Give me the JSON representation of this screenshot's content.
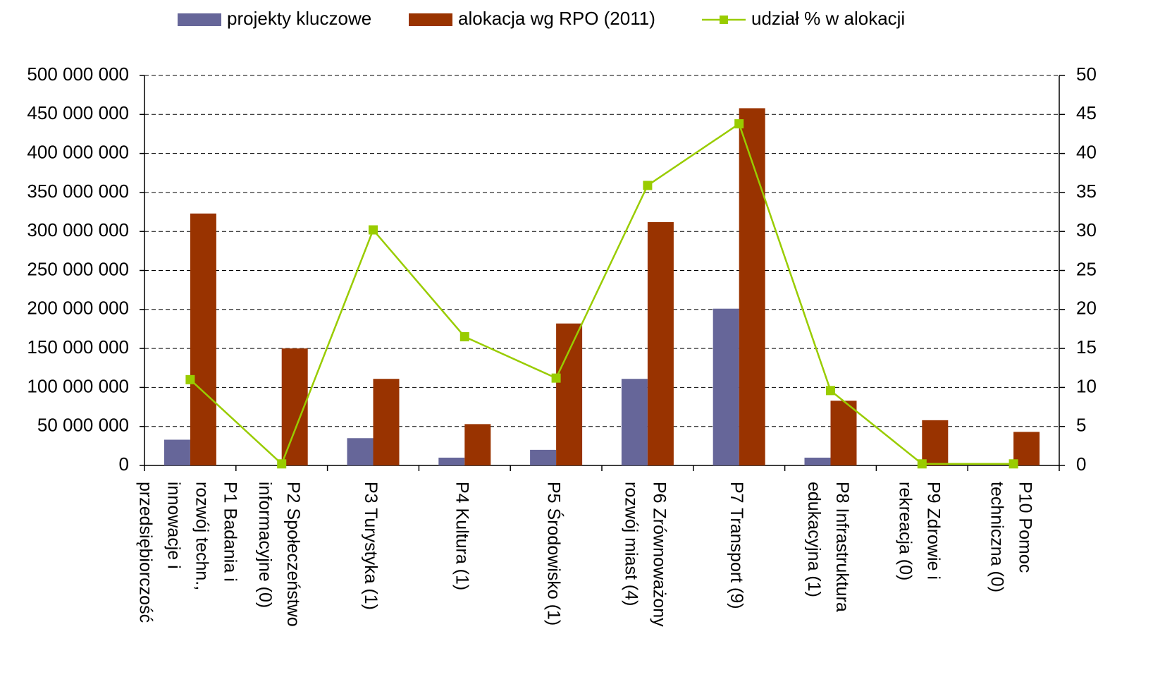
{
  "chart_data": {
    "type": "bar_line",
    "categories": [
      [
        "P1 Badania i",
        "rozwój techn.,",
        "innowacje i",
        "przedsiębiorczość"
      ],
      [
        "P2 Społeczeństwo",
        "informacyjne (0)"
      ],
      [
        "P3 Turystyka (1)"
      ],
      [
        "P4 Kultura (1)"
      ],
      [
        "P5 Środowisko (1)"
      ],
      [
        "P6 Zrównoważony",
        "rozwój miast (4)"
      ],
      [
        "P7 Transport (9)"
      ],
      [
        "P8 Infrastruktura",
        "edukacyjna (1)"
      ],
      [
        "P9 Zdrowie i",
        "rekreacja (0)"
      ],
      [
        "P10 Pomoc",
        "techniczna (0)"
      ]
    ],
    "series": [
      {
        "name": "projekty kluczowe",
        "type": "bar",
        "color": "#666699",
        "values": [
          33000000,
          0,
          35000000,
          10000000,
          20000000,
          111000000,
          201000000,
          10000000,
          0,
          0
        ]
      },
      {
        "name": "alokacja wg RPO (2011)",
        "type": "bar",
        "color": "#993300",
        "values": [
          323000000,
          150000000,
          111000000,
          53000000,
          182000000,
          312000000,
          458000000,
          83000000,
          58000000,
          43000000
        ]
      },
      {
        "name": "udział % w alokacji",
        "type": "line",
        "axis": "y2",
        "color": "#99cc00",
        "values": [
          11.0,
          0.2,
          30.2,
          16.5,
          11.2,
          35.9,
          43.8,
          9.6,
          0.2,
          0.2
        ]
      }
    ],
    "ylim": [
      0,
      500000000
    ],
    "yticks": [
      0,
      {
        "value": 50000000,
        "label": "50 000 000"
      },
      {
        "value": 100000000,
        "label": "100 000 000"
      },
      {
        "value": 150000000,
        "label": "150 000 000"
      },
      {
        "value": 200000000,
        "label": "200 000 000"
      },
      {
        "value": 250000000,
        "label": "250 000 000"
      },
      {
        "value": 300000000,
        "label": "300 000 000"
      },
      {
        "value": 350000000,
        "label": "350 000 000"
      },
      {
        "value": 400000000,
        "label": "400 000 000"
      },
      {
        "value": 450000000,
        "label": "450 000 000"
      },
      {
        "value": 500000000,
        "label": "500 000 000"
      }
    ],
    "y2lim": [
      0,
      50
    ],
    "y2ticks": [
      0,
      5,
      10,
      15,
      20,
      25,
      30,
      35,
      40,
      45,
      50
    ],
    "grid": true,
    "legend": "top"
  }
}
